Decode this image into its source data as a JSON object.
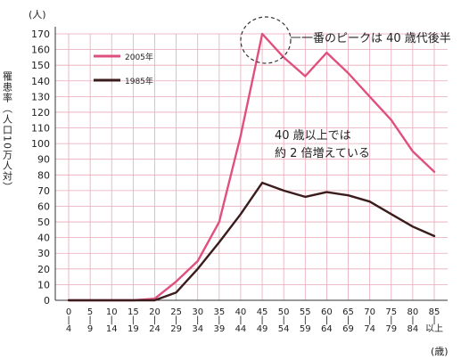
{
  "chart_data": {
    "type": "line",
    "y_unit": "(人)",
    "ylabel": "罹患率（人口10万人対）",
    "x_unit": "(歳)",
    "categories": [
      [
        "0",
        "4"
      ],
      [
        "5",
        "9"
      ],
      [
        "10",
        "14"
      ],
      [
        "15",
        "19"
      ],
      [
        "20",
        "24"
      ],
      [
        "25",
        "29"
      ],
      [
        "30",
        "34"
      ],
      [
        "35",
        "39"
      ],
      [
        "40",
        "44"
      ],
      [
        "45",
        "49"
      ],
      [
        "50",
        "54"
      ],
      [
        "55",
        "59"
      ],
      [
        "60",
        "64"
      ],
      [
        "65",
        "69"
      ],
      [
        "70",
        "74"
      ],
      [
        "75",
        "79"
      ],
      [
        "80",
        "84"
      ],
      [
        "85",
        "以上"
      ]
    ],
    "ylim": [
      0,
      170
    ],
    "yticks": [
      0,
      10,
      20,
      30,
      40,
      50,
      60,
      70,
      80,
      90,
      100,
      110,
      120,
      130,
      140,
      150,
      160,
      170
    ],
    "grid": true,
    "legend_position": "top-left",
    "series": [
      {
        "name": "2005年",
        "color": "#e0507e",
        "values": [
          0,
          0,
          0,
          0,
          1,
          12,
          25,
          50,
          105,
          170,
          155,
          143,
          158,
          145,
          130,
          115,
          95,
          82
        ]
      },
      {
        "name": "1985年",
        "color": "#3a1c1c",
        "values": [
          0,
          0,
          0,
          0,
          0,
          5,
          20,
          37,
          55,
          75,
          70,
          66,
          69,
          67,
          63,
          55,
          47,
          41
        ]
      }
    ],
    "annotations": {
      "peak": "一番のピークは 40 歳代後半",
      "middle": [
        "40 歳以上では",
        "約 2 倍増えている"
      ]
    }
  }
}
